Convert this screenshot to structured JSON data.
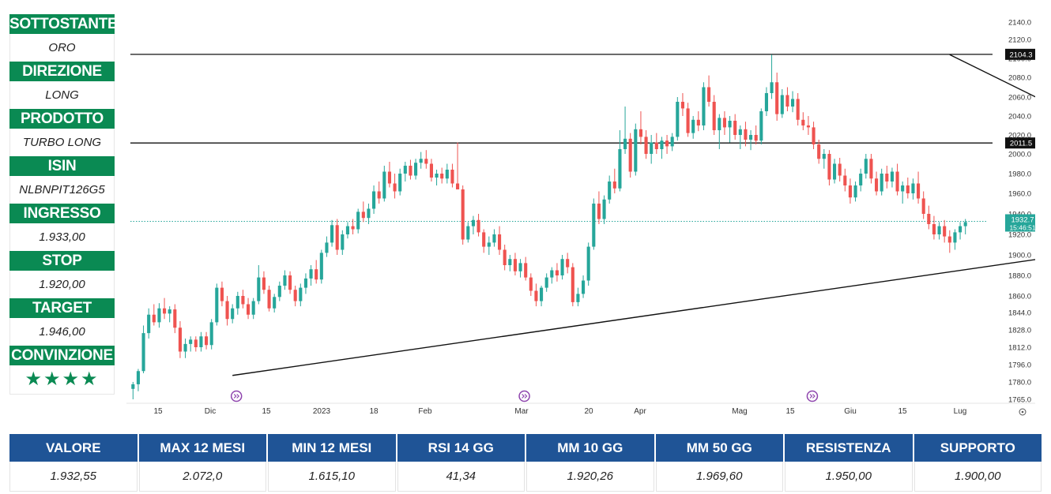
{
  "panel": [
    {
      "label": "SOTTOSTANTE",
      "value": "ORO"
    },
    {
      "label": "DIREZIONE",
      "value": "LONG"
    },
    {
      "label": "PRODOTTO",
      "value": "TURBO LONG"
    },
    {
      "label": "ISIN",
      "value": "NLBNPIT126G5"
    },
    {
      "label": "INGRESSO",
      "value": "1.933,00"
    },
    {
      "label": "STOP",
      "value": "1.920,00"
    },
    {
      "label": "TARGET",
      "value": "1.946,00"
    },
    {
      "label": "CONVINZIONE",
      "value": "★★★★"
    }
  ],
  "stats": [
    {
      "label": "VALORE",
      "value": "1.932,55"
    },
    {
      "label": "MAX 12 MESI",
      "value": "2.072,0"
    },
    {
      "label": "MIN 12 MESI",
      "value": "1.615,10"
    },
    {
      "label": "RSI 14 GG",
      "value": "41,34"
    },
    {
      "label": "MM 10 GG",
      "value": "1.920,26"
    },
    {
      "label": "MM 50 GG",
      "value": "1.969,60"
    },
    {
      "label": "RESISTENZA",
      "value": "1.950,00"
    },
    {
      "label": "SUPPORTO",
      "value": "1.900,00"
    }
  ],
  "colors": {
    "green_header": "#0a8a53",
    "blue_header": "#1f5496",
    "up": "#26a69a",
    "down": "#ef5350",
    "dots": "#26a69a"
  },
  "chart_data": {
    "type": "candlestick",
    "y_ticks": [
      1765.0,
      1780.0,
      1796.0,
      1812.0,
      1828.0,
      1844.0,
      1860.0,
      1880.0,
      1900.0,
      1920.0,
      1940.0,
      1960.0,
      1980.0,
      2000.0,
      2020.0,
      2040.0,
      2060.0,
      2080.0,
      2100.0,
      2120.0,
      2140.0
    ],
    "x_ticks": [
      "15",
      "Dic",
      "15",
      "2023",
      "18",
      "Feb",
      "Mar",
      "20",
      "Apr",
      "Mag",
      "15",
      "Giu",
      "15",
      "Lug"
    ],
    "ylim": [
      1765,
      2140
    ],
    "price_labels": [
      {
        "value": 2104.3,
        "text": "2104.3"
      },
      {
        "value": 2011.5,
        "text": "2011.5"
      },
      {
        "value": 1932.7,
        "text": "1932.7",
        "sub": "15:46:51"
      }
    ],
    "levels": [
      2104.3,
      2011.5
    ],
    "trendlines": [
      {
        "from": [
          19,
          1786
        ],
        "to": [
          218,
          1929
        ]
      },
      {
        "from": [
          156,
          2104
        ],
        "to": [
          218,
          1934
        ]
      }
    ],
    "event_markers": [
      19,
      74,
      129,
      184
    ],
    "candles": [
      {
        "o": 1774,
        "h": 1780,
        "l": 1765,
        "c": 1778
      },
      {
        "o": 1778,
        "h": 1792,
        "l": 1772,
        "c": 1790
      },
      {
        "o": 1790,
        "h": 1832,
        "l": 1788,
        "c": 1825
      },
      {
        "o": 1825,
        "h": 1848,
        "l": 1820,
        "c": 1842
      },
      {
        "o": 1842,
        "h": 1852,
        "l": 1832,
        "c": 1835
      },
      {
        "o": 1835,
        "h": 1853,
        "l": 1830,
        "c": 1848
      },
      {
        "o": 1848,
        "h": 1858,
        "l": 1838,
        "c": 1843
      },
      {
        "o": 1843,
        "h": 1850,
        "l": 1835,
        "c": 1847
      },
      {
        "o": 1847,
        "h": 1852,
        "l": 1825,
        "c": 1830
      },
      {
        "o": 1830,
        "h": 1836,
        "l": 1802,
        "c": 1808
      },
      {
        "o": 1808,
        "h": 1820,
        "l": 1802,
        "c": 1815
      },
      {
        "o": 1815,
        "h": 1822,
        "l": 1808,
        "c": 1819
      },
      {
        "o": 1819,
        "h": 1822,
        "l": 1808,
        "c": 1812
      },
      {
        "o": 1812,
        "h": 1826,
        "l": 1808,
        "c": 1822
      },
      {
        "o": 1822,
        "h": 1826,
        "l": 1810,
        "c": 1814
      },
      {
        "o": 1814,
        "h": 1838,
        "l": 1810,
        "c": 1835
      },
      {
        "o": 1835,
        "h": 1872,
        "l": 1832,
        "c": 1868
      },
      {
        "o": 1868,
        "h": 1874,
        "l": 1850,
        "c": 1855
      },
      {
        "o": 1855,
        "h": 1860,
        "l": 1832,
        "c": 1838
      },
      {
        "o": 1838,
        "h": 1852,
        "l": 1834,
        "c": 1848
      },
      {
        "o": 1848,
        "h": 1864,
        "l": 1842,
        "c": 1860
      },
      {
        "o": 1860,
        "h": 1866,
        "l": 1848,
        "c": 1852
      },
      {
        "o": 1852,
        "h": 1858,
        "l": 1838,
        "c": 1842
      },
      {
        "o": 1842,
        "h": 1858,
        "l": 1838,
        "c": 1855
      },
      {
        "o": 1855,
        "h": 1890,
        "l": 1852,
        "c": 1878
      },
      {
        "o": 1878,
        "h": 1884,
        "l": 1862,
        "c": 1866
      },
      {
        "o": 1866,
        "h": 1870,
        "l": 1845,
        "c": 1848
      },
      {
        "o": 1848,
        "h": 1862,
        "l": 1844,
        "c": 1859
      },
      {
        "o": 1859,
        "h": 1874,
        "l": 1855,
        "c": 1870
      },
      {
        "o": 1870,
        "h": 1885,
        "l": 1866,
        "c": 1880
      },
      {
        "o": 1880,
        "h": 1884,
        "l": 1862,
        "c": 1866
      },
      {
        "o": 1866,
        "h": 1870,
        "l": 1850,
        "c": 1855
      },
      {
        "o": 1855,
        "h": 1872,
        "l": 1850,
        "c": 1868
      },
      {
        "o": 1868,
        "h": 1882,
        "l": 1862,
        "c": 1877
      },
      {
        "o": 1877,
        "h": 1890,
        "l": 1870,
        "c": 1886
      },
      {
        "o": 1886,
        "h": 1895,
        "l": 1872,
        "c": 1876
      },
      {
        "o": 1876,
        "h": 1905,
        "l": 1872,
        "c": 1902
      },
      {
        "o": 1902,
        "h": 1918,
        "l": 1898,
        "c": 1912
      },
      {
        "o": 1912,
        "h": 1934,
        "l": 1908,
        "c": 1929
      },
      {
        "o": 1929,
        "h": 1935,
        "l": 1900,
        "c": 1905
      },
      {
        "o": 1905,
        "h": 1924,
        "l": 1900,
        "c": 1920
      },
      {
        "o": 1920,
        "h": 1932,
        "l": 1916,
        "c": 1928
      },
      {
        "o": 1928,
        "h": 1935,
        "l": 1920,
        "c": 1925
      },
      {
        "o": 1925,
        "h": 1945,
        "l": 1921,
        "c": 1942
      },
      {
        "o": 1942,
        "h": 1952,
        "l": 1932,
        "c": 1936
      },
      {
        "o": 1936,
        "h": 1950,
        "l": 1930,
        "c": 1945
      },
      {
        "o": 1945,
        "h": 1968,
        "l": 1940,
        "c": 1962
      },
      {
        "o": 1962,
        "h": 1972,
        "l": 1950,
        "c": 1955
      },
      {
        "o": 1955,
        "h": 1988,
        "l": 1952,
        "c": 1982
      },
      {
        "o": 1982,
        "h": 1992,
        "l": 1966,
        "c": 1970
      },
      {
        "o": 1970,
        "h": 1980,
        "l": 1955,
        "c": 1962
      },
      {
        "o": 1962,
        "h": 1985,
        "l": 1958,
        "c": 1980
      },
      {
        "o": 1980,
        "h": 1992,
        "l": 1972,
        "c": 1988
      },
      {
        "o": 1988,
        "h": 1994,
        "l": 1974,
        "c": 1978
      },
      {
        "o": 1978,
        "h": 1995,
        "l": 1974,
        "c": 1991
      },
      {
        "o": 1991,
        "h": 2002,
        "l": 1985,
        "c": 1995
      },
      {
        "o": 1995,
        "h": 2004,
        "l": 1985,
        "c": 1990
      },
      {
        "o": 1990,
        "h": 1995,
        "l": 1972,
        "c": 1976
      },
      {
        "o": 1976,
        "h": 1984,
        "l": 1968,
        "c": 1980
      },
      {
        "o": 1980,
        "h": 1986,
        "l": 1970,
        "c": 1975
      },
      {
        "o": 1975,
        "h": 1990,
        "l": 1970,
        "c": 1984
      },
      {
        "o": 1984,
        "h": 1990,
        "l": 1966,
        "c": 1970
      },
      {
        "o": 1970,
        "h": 2012,
        "l": 1966,
        "c": 1964
      },
      {
        "o": 1964,
        "h": 1968,
        "l": 1910,
        "c": 1915
      },
      {
        "o": 1915,
        "h": 1932,
        "l": 1912,
        "c": 1928
      },
      {
        "o": 1928,
        "h": 1938,
        "l": 1920,
        "c": 1934
      },
      {
        "o": 1934,
        "h": 1940,
        "l": 1918,
        "c": 1922
      },
      {
        "o": 1922,
        "h": 1925,
        "l": 1902,
        "c": 1908
      },
      {
        "o": 1908,
        "h": 1918,
        "l": 1900,
        "c": 1912
      },
      {
        "o": 1912,
        "h": 1925,
        "l": 1908,
        "c": 1920
      },
      {
        "o": 1920,
        "h": 1928,
        "l": 1900,
        "c": 1905
      },
      {
        "o": 1905,
        "h": 1910,
        "l": 1885,
        "c": 1890
      },
      {
        "o": 1890,
        "h": 1900,
        "l": 1884,
        "c": 1896
      },
      {
        "o": 1896,
        "h": 1902,
        "l": 1880,
        "c": 1884
      },
      {
        "o": 1884,
        "h": 1896,
        "l": 1878,
        "c": 1892
      },
      {
        "o": 1892,
        "h": 1898,
        "l": 1875,
        "c": 1878
      },
      {
        "o": 1878,
        "h": 1882,
        "l": 1860,
        "c": 1865
      },
      {
        "o": 1865,
        "h": 1872,
        "l": 1850,
        "c": 1855
      },
      {
        "o": 1855,
        "h": 1870,
        "l": 1850,
        "c": 1868
      },
      {
        "o": 1868,
        "h": 1882,
        "l": 1864,
        "c": 1878
      },
      {
        "o": 1878,
        "h": 1888,
        "l": 1872,
        "c": 1885
      },
      {
        "o": 1885,
        "h": 1892,
        "l": 1874,
        "c": 1880
      },
      {
        "o": 1880,
        "h": 1900,
        "l": 1876,
        "c": 1896
      },
      {
        "o": 1896,
        "h": 1902,
        "l": 1882,
        "c": 1888
      },
      {
        "o": 1888,
        "h": 1892,
        "l": 1850,
        "c": 1854
      },
      {
        "o": 1854,
        "h": 1868,
        "l": 1850,
        "c": 1862
      },
      {
        "o": 1862,
        "h": 1880,
        "l": 1858,
        "c": 1875
      },
      {
        "o": 1875,
        "h": 1912,
        "l": 1870,
        "c": 1908
      },
      {
        "o": 1908,
        "h": 1955,
        "l": 1905,
        "c": 1950
      },
      {
        "o": 1950,
        "h": 1962,
        "l": 1930,
        "c": 1935
      },
      {
        "o": 1935,
        "h": 1958,
        "l": 1930,
        "c": 1954
      },
      {
        "o": 1954,
        "h": 1978,
        "l": 1950,
        "c": 1972
      },
      {
        "o": 1972,
        "h": 1985,
        "l": 1960,
        "c": 1965
      },
      {
        "o": 1965,
        "h": 2025,
        "l": 1962,
        "c": 2005
      },
      {
        "o": 2005,
        "h": 2050,
        "l": 2000,
        "c": 2016
      },
      {
        "o": 2016,
        "h": 2022,
        "l": 1976,
        "c": 1982
      },
      {
        "o": 1982,
        "h": 2032,
        "l": 1978,
        "c": 2026
      },
      {
        "o": 2026,
        "h": 2045,
        "l": 2010,
        "c": 2018
      },
      {
        "o": 2018,
        "h": 2025,
        "l": 1995,
        "c": 2000
      },
      {
        "o": 2000,
        "h": 2020,
        "l": 1990,
        "c": 2012
      },
      {
        "o": 2012,
        "h": 2022,
        "l": 2000,
        "c": 2005
      },
      {
        "o": 2005,
        "h": 2018,
        "l": 1995,
        "c": 2014
      },
      {
        "o": 2014,
        "h": 2020,
        "l": 2000,
        "c": 2008
      },
      {
        "o": 2008,
        "h": 2022,
        "l": 2003,
        "c": 2018
      },
      {
        "o": 2018,
        "h": 2060,
        "l": 2014,
        "c": 2055
      },
      {
        "o": 2055,
        "h": 2064,
        "l": 2040,
        "c": 2048
      },
      {
        "o": 2048,
        "h": 2054,
        "l": 2018,
        "c": 2022
      },
      {
        "o": 2022,
        "h": 2040,
        "l": 2016,
        "c": 2036
      },
      {
        "o": 2036,
        "h": 2045,
        "l": 2024,
        "c": 2030
      },
      {
        "o": 2030,
        "h": 2075,
        "l": 2025,
        "c": 2070
      },
      {
        "o": 2070,
        "h": 2082,
        "l": 2050,
        "c": 2055
      },
      {
        "o": 2055,
        "h": 2062,
        "l": 2020,
        "c": 2025
      },
      {
        "o": 2025,
        "h": 2042,
        "l": 2005,
        "c": 2038
      },
      {
        "o": 2038,
        "h": 2045,
        "l": 2020,
        "c": 2028
      },
      {
        "o": 2028,
        "h": 2040,
        "l": 2012,
        "c": 2035
      },
      {
        "o": 2035,
        "h": 2042,
        "l": 2015,
        "c": 2020
      },
      {
        "o": 2020,
        "h": 2030,
        "l": 2005,
        "c": 2026
      },
      {
        "o": 2026,
        "h": 2034,
        "l": 2008,
        "c": 2015
      },
      {
        "o": 2015,
        "h": 2025,
        "l": 2004,
        "c": 2020
      },
      {
        "o": 2020,
        "h": 2030,
        "l": 2010,
        "c": 2014
      },
      {
        "o": 2014,
        "h": 2048,
        "l": 2010,
        "c": 2045
      },
      {
        "o": 2045,
        "h": 2070,
        "l": 2040,
        "c": 2064
      },
      {
        "o": 2064,
        "h": 2104,
        "l": 2058,
        "c": 2075
      },
      {
        "o": 2075,
        "h": 2085,
        "l": 2035,
        "c": 2042
      },
      {
        "o": 2042,
        "h": 2068,
        "l": 2038,
        "c": 2062
      },
      {
        "o": 2062,
        "h": 2070,
        "l": 2045,
        "c": 2050
      },
      {
        "o": 2050,
        "h": 2066,
        "l": 2044,
        "c": 2058
      },
      {
        "o": 2058,
        "h": 2064,
        "l": 2030,
        "c": 2036
      },
      {
        "o": 2036,
        "h": 2044,
        "l": 2025,
        "c": 2030
      },
      {
        "o": 2030,
        "h": 2040,
        "l": 2020,
        "c": 2028
      },
      {
        "o": 2028,
        "h": 2034,
        "l": 2005,
        "c": 2010
      },
      {
        "o": 2010,
        "h": 2015,
        "l": 1990,
        "c": 1995
      },
      {
        "o": 1995,
        "h": 2005,
        "l": 1985,
        "c": 2000
      },
      {
        "o": 2000,
        "h": 2004,
        "l": 1968,
        "c": 1974
      },
      {
        "o": 1974,
        "h": 1995,
        "l": 1970,
        "c": 1990
      },
      {
        "o": 1990,
        "h": 1996,
        "l": 1972,
        "c": 1978
      },
      {
        "o": 1978,
        "h": 1985,
        "l": 1962,
        "c": 1968
      },
      {
        "o": 1968,
        "h": 1975,
        "l": 1950,
        "c": 1956
      },
      {
        "o": 1956,
        "h": 1972,
        "l": 1952,
        "c": 1968
      },
      {
        "o": 1968,
        "h": 1985,
        "l": 1962,
        "c": 1980
      },
      {
        "o": 1980,
        "h": 2000,
        "l": 1975,
        "c": 1995
      },
      {
        "o": 1995,
        "h": 2000,
        "l": 1970,
        "c": 1975
      },
      {
        "o": 1975,
        "h": 1982,
        "l": 1958,
        "c": 1962
      },
      {
        "o": 1962,
        "h": 1985,
        "l": 1958,
        "c": 1980
      },
      {
        "o": 1980,
        "h": 1988,
        "l": 1965,
        "c": 1972
      },
      {
        "o": 1972,
        "h": 1986,
        "l": 1966,
        "c": 1982
      },
      {
        "o": 1982,
        "h": 1990,
        "l": 1958,
        "c": 1962
      },
      {
        "o": 1962,
        "h": 1972,
        "l": 1950,
        "c": 1968
      },
      {
        "o": 1968,
        "h": 1976,
        "l": 1955,
        "c": 1960
      },
      {
        "o": 1960,
        "h": 1975,
        "l": 1954,
        "c": 1970
      },
      {
        "o": 1970,
        "h": 1982,
        "l": 1950,
        "c": 1955
      },
      {
        "o": 1955,
        "h": 1962,
        "l": 1935,
        "c": 1940
      },
      {
        "o": 1940,
        "h": 1948,
        "l": 1925,
        "c": 1930
      },
      {
        "o": 1930,
        "h": 1938,
        "l": 1915,
        "c": 1920
      },
      {
        "o": 1920,
        "h": 1932,
        "l": 1915,
        "c": 1928
      },
      {
        "o": 1928,
        "h": 1934,
        "l": 1912,
        "c": 1918
      },
      {
        "o": 1918,
        "h": 1924,
        "l": 1902,
        "c": 1912
      },
      {
        "o": 1912,
        "h": 1925,
        "l": 1905,
        "c": 1922
      },
      {
        "o": 1922,
        "h": 1932,
        "l": 1915,
        "c": 1928
      },
      {
        "o": 1928,
        "h": 1935,
        "l": 1920,
        "c": 1932
      }
    ]
  }
}
